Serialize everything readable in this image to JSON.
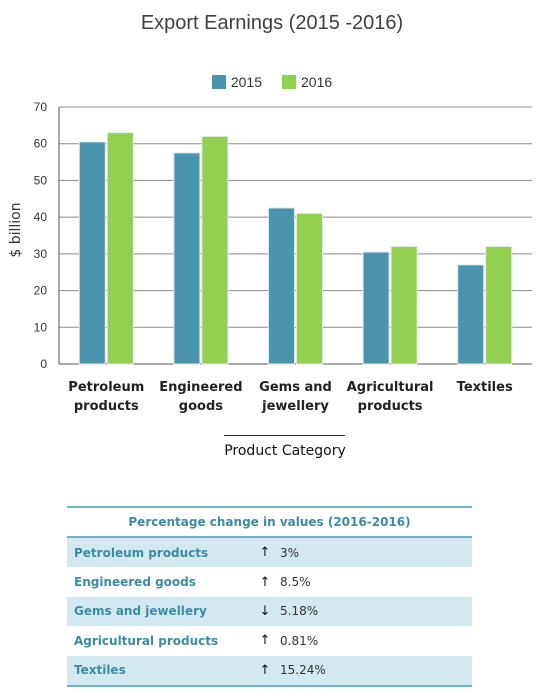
{
  "chart_data": {
    "type": "bar",
    "title": "Export Earnings (2015 -2016)",
    "xlabel": "Product Category",
    "ylabel": "$ billion",
    "ylim": [
      0,
      70
    ],
    "yticks": [
      "0",
      "10",
      "20",
      "30",
      "40",
      "50",
      "60",
      "70"
    ],
    "categories": [
      [
        "Petroleum",
        "products"
      ],
      [
        "Engineered",
        "goods"
      ],
      [
        "Gems and",
        "jewellery"
      ],
      [
        "Agricultural",
        "products"
      ],
      [
        "Textiles"
      ]
    ],
    "series": [
      {
        "name": "2015",
        "values": [
          60.5,
          57.5,
          42.5,
          30.5,
          27
        ],
        "color": "#4a94ad"
      },
      {
        "name": "2016",
        "values": [
          63,
          62,
          41,
          32,
          32
        ],
        "color": "#92d050"
      }
    ],
    "grid": true,
    "legend_position": "top"
  },
  "table": {
    "title": "Percentage change in values (2016-2016)",
    "rows": [
      {
        "name": "Petroleum products",
        "direction": "up",
        "arrow": "↑",
        "value": "3%"
      },
      {
        "name": "Engineered goods",
        "direction": "up",
        "arrow": "↑",
        "value": "8.5%"
      },
      {
        "name": "Gems and jewellery",
        "direction": "down",
        "arrow": "↓",
        "value": "5.18%"
      },
      {
        "name": "Agricultural products",
        "direction": "up",
        "arrow": "↑",
        "value": "0.81%"
      },
      {
        "name": "Textiles",
        "direction": "up",
        "arrow": "↑",
        "value": "15.24%"
      }
    ],
    "header_color": "#3c8ba7",
    "shade_color": "#d3e9f0"
  }
}
